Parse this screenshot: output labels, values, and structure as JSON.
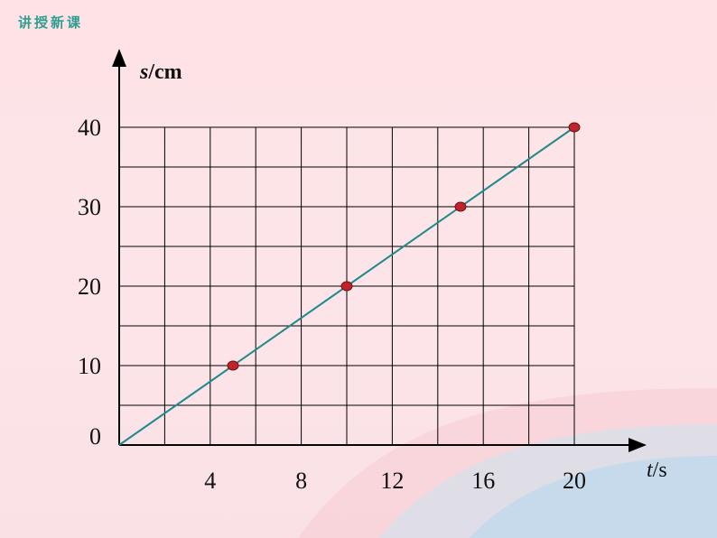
{
  "header": {
    "title": "讲授新课",
    "color": "#2e9d8f"
  },
  "colors": {
    "line": "#1f8a8a",
    "point_fill": "#c0242b",
    "axis": "#000000",
    "grid": "#000000"
  },
  "chart_data": {
    "type": "line",
    "xlabel": {
      "var": "t",
      "unit": "/s"
    },
    "ylabel": {
      "var": "s",
      "unit": "/cm"
    },
    "x_ticks": [
      "4",
      "8",
      "12",
      "16",
      "20"
    ],
    "y_ticks": [
      "0",
      "10",
      "20",
      "30",
      "40"
    ],
    "xlim": [
      0,
      20
    ],
    "ylim": [
      0,
      40
    ],
    "x_grid_step": 2,
    "y_grid_step": 5,
    "grid": true,
    "series": [
      {
        "x": [
          0,
          20
        ],
        "y": [
          0,
          40
        ]
      }
    ],
    "points": [
      {
        "x": 5,
        "y": 10
      },
      {
        "x": 10,
        "y": 20
      },
      {
        "x": 15,
        "y": 30
      },
      {
        "x": 20,
        "y": 40
      }
    ]
  }
}
